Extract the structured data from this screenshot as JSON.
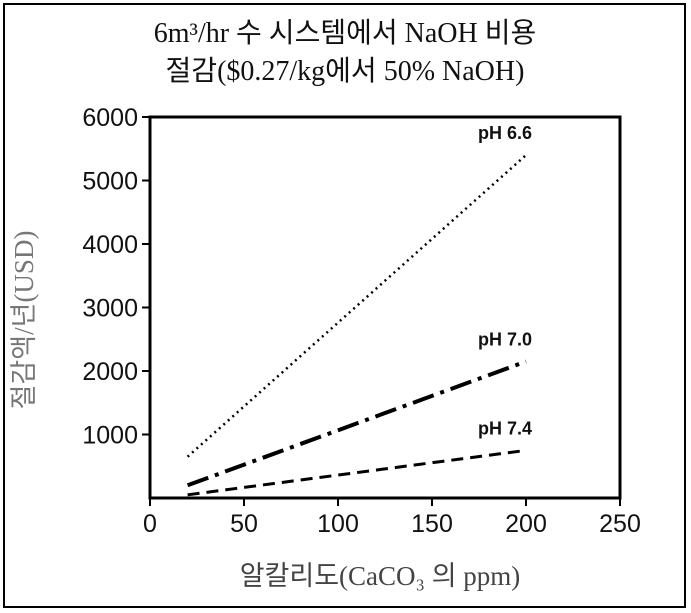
{
  "chart_data": {
    "type": "line",
    "title_line1": "6m³/hr 수 시스템에서 NaOH 비용",
    "title_line2": "절감($0.27/kg에서 50% NaOH)",
    "xlabel": "알칼리도(CaCO₃ 의 ppm)",
    "ylabel": "절감액/년(USD)",
    "xlim": [
      0,
      250
    ],
    "ylim": [
      0,
      6000
    ],
    "x_ticks": [
      0,
      50,
      100,
      150,
      200,
      250
    ],
    "y_ticks": [
      1000,
      2000,
      3000,
      4000,
      5000,
      6000
    ],
    "grid": false,
    "series": [
      {
        "name": "pH 6.6",
        "style": "dotted",
        "x": [
          20,
          200
        ],
        "y": [
          650,
          5400
        ]
      },
      {
        "name": "pH 7.0",
        "style": "dash-dot",
        "x": [
          20,
          200
        ],
        "y": [
          200,
          2150
        ]
      },
      {
        "name": "pH 7.4",
        "style": "dashed",
        "x": [
          20,
          200
        ],
        "y": [
          50,
          750
        ]
      }
    ]
  }
}
